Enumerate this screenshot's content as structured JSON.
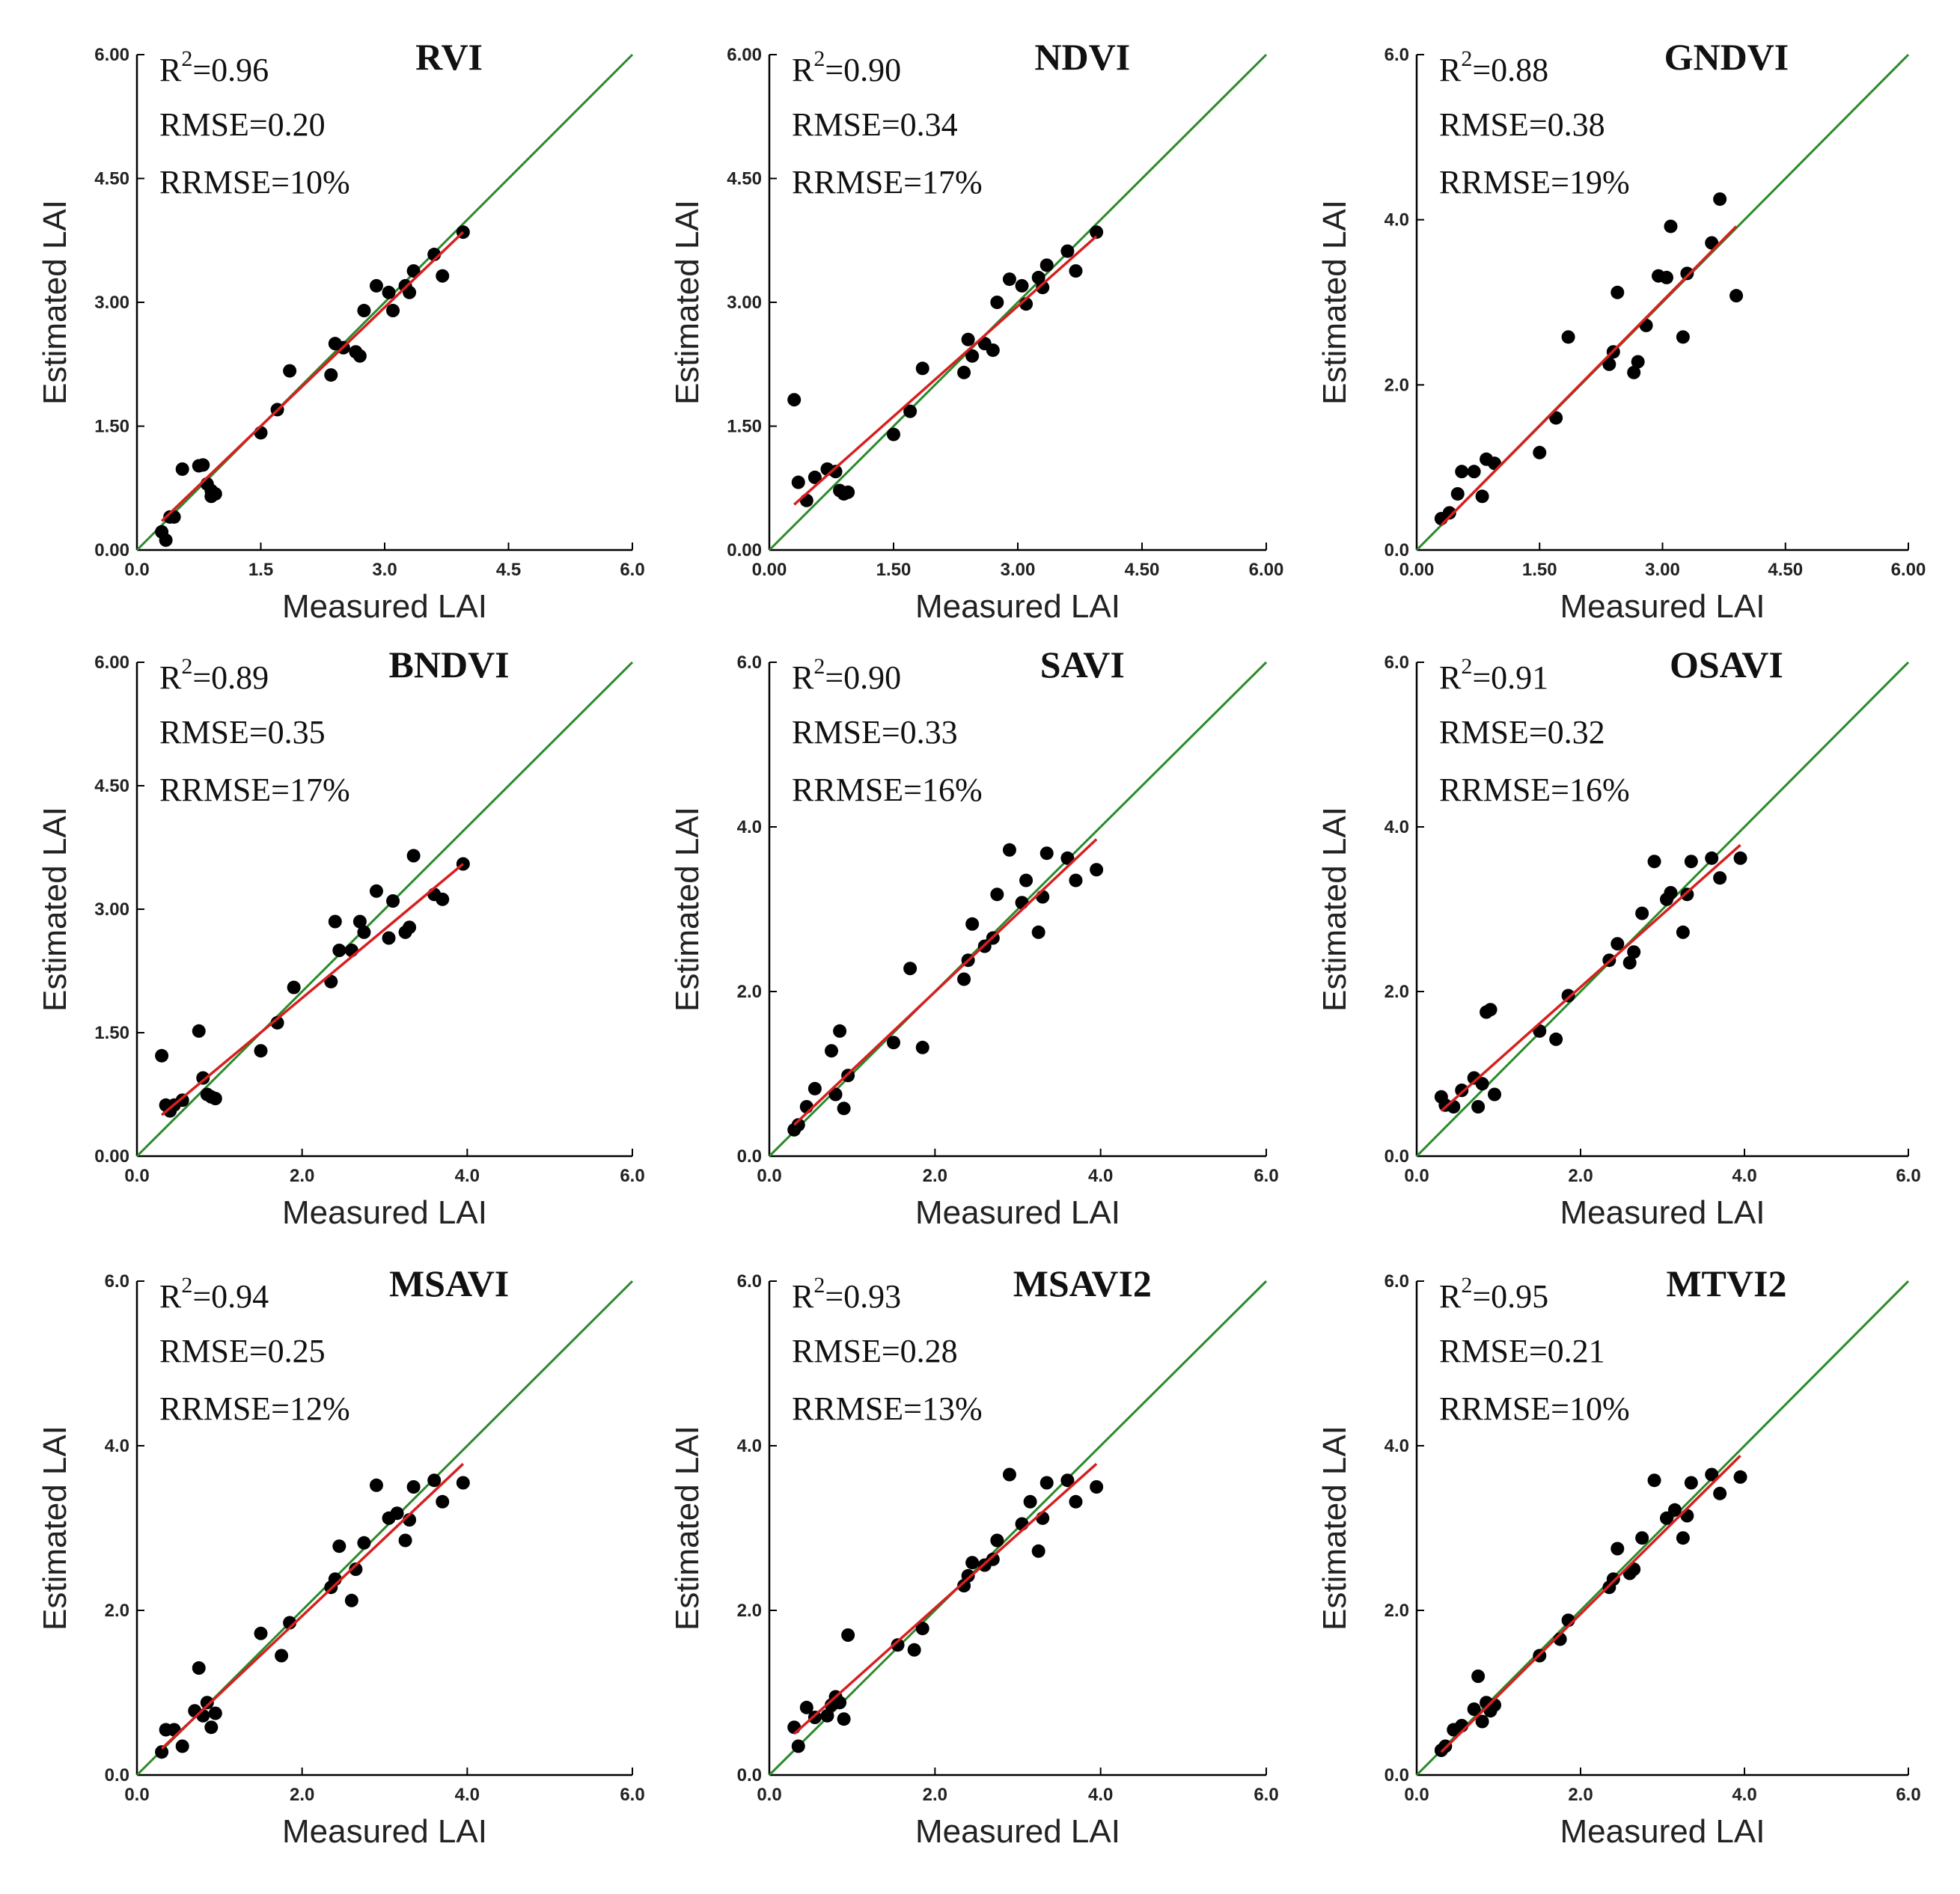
{
  "colors": {
    "identity_line": "#2a8a2a",
    "fit_line": "#d62020",
    "points": "#000000",
    "axis": "#000000"
  },
  "chart_data": [
    {
      "type": "scatter",
      "title": "RVI",
      "xlabel": "Measured LAI",
      "ylabel": "Estimated LAI",
      "xlim": [
        0,
        6
      ],
      "ylim": [
        0,
        6
      ],
      "xticks": [
        "0.0",
        "1.5",
        "3.0",
        "4.5",
        "6.0"
      ],
      "yticks": [
        "0.00",
        "1.50",
        "3.00",
        "4.50",
        "6.00"
      ],
      "r2_prefix": "R",
      "r2_exp": "2",
      "r2_value": "=0.96",
      "rmse": "RMSE=0.20",
      "rrmse": "RRMSE=10%",
      "fit": [
        [
          0.3,
          0.35
        ],
        [
          3.95,
          3.85
        ]
      ],
      "points": [
        [
          0.3,
          0.22
        ],
        [
          0.35,
          0.12
        ],
        [
          0.4,
          0.4
        ],
        [
          0.45,
          0.4
        ],
        [
          0.55,
          0.98
        ],
        [
          0.75,
          1.02
        ],
        [
          0.8,
          1.03
        ],
        [
          0.85,
          0.8
        ],
        [
          0.9,
          0.72
        ],
        [
          0.95,
          0.68
        ],
        [
          0.9,
          0.65
        ],
        [
          1.5,
          1.42
        ],
        [
          1.7,
          1.7
        ],
        [
          1.85,
          2.17
        ],
        [
          2.35,
          2.12
        ],
        [
          2.4,
          2.5
        ],
        [
          2.5,
          2.45
        ],
        [
          2.65,
          2.4
        ],
        [
          2.7,
          2.35
        ],
        [
          2.75,
          2.9
        ],
        [
          2.9,
          3.2
        ],
        [
          3.05,
          3.12
        ],
        [
          3.1,
          2.9
        ],
        [
          3.25,
          3.2
        ],
        [
          3.3,
          3.12
        ],
        [
          3.35,
          3.38
        ],
        [
          3.6,
          3.58
        ],
        [
          3.7,
          3.32
        ],
        [
          3.95,
          3.85
        ]
      ]
    },
    {
      "type": "scatter",
      "title": "NDVI",
      "xlabel": "Measured LAI",
      "ylabel": "Estimated LAI",
      "xlim": [
        0,
        6
      ],
      "ylim": [
        0,
        6
      ],
      "xticks": [
        "0.00",
        "1.50",
        "3.00",
        "4.50",
        "6.00"
      ],
      "yticks": [
        "0.00",
        "1.50",
        "3.00",
        "4.50",
        "6.00"
      ],
      "r2_prefix": "R",
      "r2_exp": "2",
      "r2_value": "=0.90",
      "rmse": "RMSE=0.34",
      "rrmse": "RRMSE=17%",
      "fit": [
        [
          0.3,
          0.55
        ],
        [
          3.95,
          3.8
        ]
      ],
      "points": [
        [
          0.3,
          1.82
        ],
        [
          0.35,
          0.82
        ],
        [
          0.45,
          0.6
        ],
        [
          0.55,
          0.88
        ],
        [
          0.7,
          0.98
        ],
        [
          0.8,
          0.95
        ],
        [
          0.85,
          0.72
        ],
        [
          0.9,
          0.68
        ],
        [
          0.95,
          0.7
        ],
        [
          1.5,
          1.4
        ],
        [
          1.7,
          1.68
        ],
        [
          1.85,
          2.2
        ],
        [
          2.35,
          2.15
        ],
        [
          2.4,
          2.55
        ],
        [
          2.45,
          2.35
        ],
        [
          2.6,
          2.5
        ],
        [
          2.7,
          2.42
        ],
        [
          2.75,
          3.0
        ],
        [
          2.9,
          3.28
        ],
        [
          3.05,
          3.2
        ],
        [
          3.1,
          2.98
        ],
        [
          3.25,
          3.3
        ],
        [
          3.3,
          3.18
        ],
        [
          3.35,
          3.45
        ],
        [
          3.6,
          3.62
        ],
        [
          3.7,
          3.38
        ],
        [
          3.95,
          3.85
        ]
      ]
    },
    {
      "type": "scatter",
      "title": "GNDVI",
      "xlabel": "Measured LAI",
      "ylabel": "Estimated LAI",
      "xlim": [
        0,
        6
      ],
      "ylim": [
        0,
        6
      ],
      "xticks": [
        "0.00",
        "1.50",
        "3.00",
        "4.50",
        "6.00"
      ],
      "yticks": [
        "0.0",
        "2.0",
        "4.0",
        "6.0"
      ],
      "r2_prefix": "R",
      "r2_exp": "2",
      "r2_value": "=0.88",
      "rmse": "RMSE=0.38",
      "rrmse": "RRMSE=19%",
      "fit": [
        [
          0.3,
          0.3
        ],
        [
          3.9,
          3.92
        ]
      ],
      "points": [
        [
          0.3,
          0.38
        ],
        [
          0.4,
          0.45
        ],
        [
          0.5,
          0.68
        ],
        [
          0.55,
          0.95
        ],
        [
          0.7,
          0.95
        ],
        [
          0.8,
          0.65
        ],
        [
          0.85,
          1.1
        ],
        [
          0.95,
          1.05
        ],
        [
          1.5,
          1.18
        ],
        [
          1.7,
          1.6
        ],
        [
          1.85,
          2.58
        ],
        [
          2.35,
          2.25
        ],
        [
          2.4,
          2.4
        ],
        [
          2.45,
          3.12
        ],
        [
          2.65,
          2.15
        ],
        [
          2.7,
          2.28
        ],
        [
          2.8,
          2.72
        ],
        [
          2.95,
          3.32
        ],
        [
          3.05,
          3.3
        ],
        [
          3.1,
          3.92
        ],
        [
          3.25,
          2.58
        ],
        [
          3.3,
          3.35
        ],
        [
          3.6,
          3.72
        ],
        [
          3.7,
          4.25
        ],
        [
          3.9,
          3.08
        ]
      ]
    },
    {
      "type": "scatter",
      "title": "BNDVI",
      "xlabel": "Measured LAI",
      "ylabel": "Estimated LAI",
      "xlim": [
        0,
        6
      ],
      "ylim": [
        0,
        6
      ],
      "xticks": [
        "0.0",
        "2.0",
        "4.0",
        "6.0"
      ],
      "yticks": [
        "0.00",
        "1.50",
        "3.00",
        "4.50",
        "6.00"
      ],
      "r2_prefix": "R",
      "r2_exp": "2",
      "r2_value": "=0.89",
      "rmse": "RMSE=0.35",
      "rrmse": "RRMSE=17%",
      "fit": [
        [
          0.3,
          0.5
        ],
        [
          3.95,
          3.55
        ]
      ],
      "points": [
        [
          0.3,
          1.22
        ],
        [
          0.35,
          0.62
        ],
        [
          0.4,
          0.55
        ],
        [
          0.45,
          0.62
        ],
        [
          0.55,
          0.68
        ],
        [
          0.75,
          1.52
        ],
        [
          0.8,
          0.95
        ],
        [
          0.85,
          0.75
        ],
        [
          0.9,
          0.72
        ],
        [
          0.95,
          0.7
        ],
        [
          1.5,
          1.28
        ],
        [
          1.7,
          1.62
        ],
        [
          1.9,
          2.05
        ],
        [
          2.35,
          2.12
        ],
        [
          2.4,
          2.85
        ],
        [
          2.45,
          2.5
        ],
        [
          2.6,
          2.5
        ],
        [
          2.7,
          2.85
        ],
        [
          2.75,
          2.72
        ],
        [
          2.9,
          3.22
        ],
        [
          3.05,
          2.65
        ],
        [
          3.1,
          3.1
        ],
        [
          3.25,
          2.72
        ],
        [
          3.3,
          2.78
        ],
        [
          3.35,
          3.65
        ],
        [
          3.6,
          3.18
        ],
        [
          3.7,
          3.12
        ],
        [
          3.95,
          3.55
        ]
      ]
    },
    {
      "type": "scatter",
      "title": "SAVI",
      "xlabel": "Measured LAI",
      "ylabel": "Estimated LAI",
      "xlim": [
        0,
        6
      ],
      "ylim": [
        0,
        6
      ],
      "xticks": [
        "0.0",
        "2.0",
        "4.0",
        "6.0"
      ],
      "yticks": [
        "0.0",
        "2.0",
        "4.0",
        "6.0"
      ],
      "r2_prefix": "R",
      "r2_exp": "2",
      "r2_value": "=0.90",
      "rmse": "RMSE=0.33",
      "rrmse": "RRMSE=16%",
      "fit": [
        [
          0.3,
          0.38
        ],
        [
          3.95,
          3.85
        ]
      ],
      "points": [
        [
          0.3,
          0.32
        ],
        [
          0.35,
          0.38
        ],
        [
          0.45,
          0.6
        ],
        [
          0.55,
          0.82
        ],
        [
          0.75,
          1.28
        ],
        [
          0.8,
          0.75
        ],
        [
          0.85,
          1.52
        ],
        [
          0.9,
          0.58
        ],
        [
          0.95,
          0.98
        ],
        [
          1.5,
          1.38
        ],
        [
          1.7,
          2.28
        ],
        [
          1.85,
          1.32
        ],
        [
          2.35,
          2.15
        ],
        [
          2.4,
          2.38
        ],
        [
          2.45,
          2.82
        ],
        [
          2.6,
          2.55
        ],
        [
          2.7,
          2.65
        ],
        [
          2.75,
          3.18
        ],
        [
          2.9,
          3.72
        ],
        [
          3.05,
          3.08
        ],
        [
          3.1,
          3.35
        ],
        [
          3.25,
          2.72
        ],
        [
          3.3,
          3.15
        ],
        [
          3.35,
          3.68
        ],
        [
          3.6,
          3.62
        ],
        [
          3.7,
          3.35
        ],
        [
          3.95,
          3.48
        ]
      ]
    },
    {
      "type": "scatter",
      "title": "OSAVI",
      "xlabel": "Measured LAI",
      "ylabel": "Estimated LAI",
      "xlim": [
        0,
        6
      ],
      "ylim": [
        0,
        6
      ],
      "xticks": [
        "0.0",
        "2.0",
        "4.0",
        "6.0"
      ],
      "yticks": [
        "0.0",
        "2.0",
        "4.0",
        "6.0"
      ],
      "r2_prefix": "R",
      "r2_exp": "2",
      "r2_value": "=0.91",
      "rmse": "RMSE=0.32",
      "rrmse": "RRMSE=16%",
      "fit": [
        [
          0.3,
          0.55
        ],
        [
          3.95,
          3.78
        ]
      ],
      "points": [
        [
          0.3,
          0.72
        ],
        [
          0.35,
          0.62
        ],
        [
          0.45,
          0.6
        ],
        [
          0.55,
          0.8
        ],
        [
          0.7,
          0.95
        ],
        [
          0.75,
          0.6
        ],
        [
          0.8,
          0.88
        ],
        [
          0.85,
          1.75
        ],
        [
          0.9,
          1.78
        ],
        [
          0.95,
          0.75
        ],
        [
          1.5,
          1.52
        ],
        [
          1.7,
          1.42
        ],
        [
          1.85,
          1.95
        ],
        [
          2.35,
          2.38
        ],
        [
          2.45,
          2.58
        ],
        [
          2.6,
          2.35
        ],
        [
          2.65,
          2.48
        ],
        [
          2.75,
          2.95
        ],
        [
          2.9,
          3.58
        ],
        [
          3.05,
          3.12
        ],
        [
          3.1,
          3.2
        ],
        [
          3.25,
          2.72
        ],
        [
          3.3,
          3.18
        ],
        [
          3.35,
          3.58
        ],
        [
          3.6,
          3.62
        ],
        [
          3.7,
          3.38
        ],
        [
          3.95,
          3.62
        ]
      ]
    },
    {
      "type": "scatter",
      "title": "MSAVI",
      "xlabel": "Measured LAI",
      "ylabel": "Estimated LAI",
      "xlim": [
        0,
        6
      ],
      "ylim": [
        0,
        6
      ],
      "xticks": [
        "0.0",
        "2.0",
        "4.0",
        "6.0"
      ],
      "yticks": [
        "0.0",
        "2.0",
        "4.0",
        "6.0"
      ],
      "r2_prefix": "R",
      "r2_exp": "2",
      "r2_value": "=0.94",
      "rmse": "RMSE=0.25",
      "rrmse": "RRMSE=12%",
      "fit": [
        [
          0.3,
          0.32
        ],
        [
          3.95,
          3.78
        ]
      ],
      "points": [
        [
          0.3,
          0.28
        ],
        [
          0.35,
          0.55
        ],
        [
          0.45,
          0.55
        ],
        [
          0.55,
          0.35
        ],
        [
          0.7,
          0.78
        ],
        [
          0.75,
          1.3
        ],
        [
          0.8,
          0.72
        ],
        [
          0.85,
          0.88
        ],
        [
          0.9,
          0.58
        ],
        [
          0.95,
          0.75
        ],
        [
          1.5,
          1.72
        ],
        [
          1.75,
          1.45
        ],
        [
          1.85,
          1.85
        ],
        [
          2.35,
          2.28
        ],
        [
          2.4,
          2.38
        ],
        [
          2.45,
          2.78
        ],
        [
          2.6,
          2.12
        ],
        [
          2.65,
          2.5
        ],
        [
          2.75,
          2.82
        ],
        [
          2.9,
          3.52
        ],
        [
          3.05,
          3.12
        ],
        [
          3.15,
          3.18
        ],
        [
          3.25,
          2.85
        ],
        [
          3.3,
          3.1
        ],
        [
          3.35,
          3.5
        ],
        [
          3.6,
          3.58
        ],
        [
          3.7,
          3.32
        ],
        [
          3.95,
          3.55
        ]
      ]
    },
    {
      "type": "scatter",
      "title": "MSAVI2",
      "xlabel": "Measured LAI",
      "ylabel": "Estimated LAI",
      "xlim": [
        0,
        6
      ],
      "ylim": [
        0,
        6
      ],
      "xticks": [
        "0.0",
        "2.0",
        "4.0",
        "6.0"
      ],
      "yticks": [
        "0.0",
        "2.0",
        "4.0",
        "6.0"
      ],
      "r2_prefix": "R",
      "r2_exp": "2",
      "r2_value": "=0.93",
      "rmse": "RMSE=0.28",
      "rrmse": "RRMSE=13%",
      "fit": [
        [
          0.3,
          0.5
        ],
        [
          3.95,
          3.78
        ]
      ],
      "points": [
        [
          0.3,
          0.58
        ],
        [
          0.35,
          0.35
        ],
        [
          0.45,
          0.82
        ],
        [
          0.55,
          0.7
        ],
        [
          0.7,
          0.72
        ],
        [
          0.75,
          0.85
        ],
        [
          0.8,
          0.95
        ],
        [
          0.85,
          0.88
        ],
        [
          0.9,
          0.68
        ],
        [
          0.95,
          1.7
        ],
        [
          1.55,
          1.58
        ],
        [
          1.75,
          1.52
        ],
        [
          1.85,
          1.78
        ],
        [
          2.35,
          2.3
        ],
        [
          2.4,
          2.42
        ],
        [
          2.45,
          2.58
        ],
        [
          2.6,
          2.55
        ],
        [
          2.7,
          2.62
        ],
        [
          2.75,
          2.85
        ],
        [
          2.9,
          3.65
        ],
        [
          3.05,
          3.05
        ],
        [
          3.15,
          3.32
        ],
        [
          3.25,
          2.72
        ],
        [
          3.3,
          3.12
        ],
        [
          3.35,
          3.55
        ],
        [
          3.6,
          3.58
        ],
        [
          3.7,
          3.32
        ],
        [
          3.95,
          3.5
        ]
      ]
    },
    {
      "type": "scatter",
      "title": "MTVI2",
      "xlabel": "Measured LAI",
      "ylabel": "Estimated LAI",
      "xlim": [
        0,
        6
      ],
      "ylim": [
        0,
        6
      ],
      "xticks": [
        "0.0",
        "2.0",
        "4.0",
        "6.0"
      ],
      "yticks": [
        "0.0",
        "2.0",
        "4.0",
        "6.0"
      ],
      "r2_prefix": "R",
      "r2_exp": "2",
      "r2_value": "=0.95",
      "rmse": "RMSE=0.21",
      "rrmse": "RRMSE=10%",
      "fit": [
        [
          0.3,
          0.28
        ],
        [
          3.95,
          3.88
        ]
      ],
      "points": [
        [
          0.3,
          0.3
        ],
        [
          0.35,
          0.35
        ],
        [
          0.45,
          0.55
        ],
        [
          0.55,
          0.6
        ],
        [
          0.7,
          0.8
        ],
        [
          0.75,
          1.2
        ],
        [
          0.8,
          0.65
        ],
        [
          0.85,
          0.88
        ],
        [
          0.9,
          0.78
        ],
        [
          0.95,
          0.85
        ],
        [
          1.5,
          1.45
        ],
        [
          1.75,
          1.65
        ],
        [
          1.85,
          1.88
        ],
        [
          2.35,
          2.28
        ],
        [
          2.4,
          2.38
        ],
        [
          2.45,
          2.75
        ],
        [
          2.6,
          2.45
        ],
        [
          2.65,
          2.5
        ],
        [
          2.75,
          2.88
        ],
        [
          2.9,
          3.58
        ],
        [
          3.05,
          3.12
        ],
        [
          3.15,
          3.22
        ],
        [
          3.25,
          2.88
        ],
        [
          3.3,
          3.15
        ],
        [
          3.35,
          3.55
        ],
        [
          3.6,
          3.65
        ],
        [
          3.7,
          3.42
        ],
        [
          3.95,
          3.62
        ]
      ]
    }
  ]
}
